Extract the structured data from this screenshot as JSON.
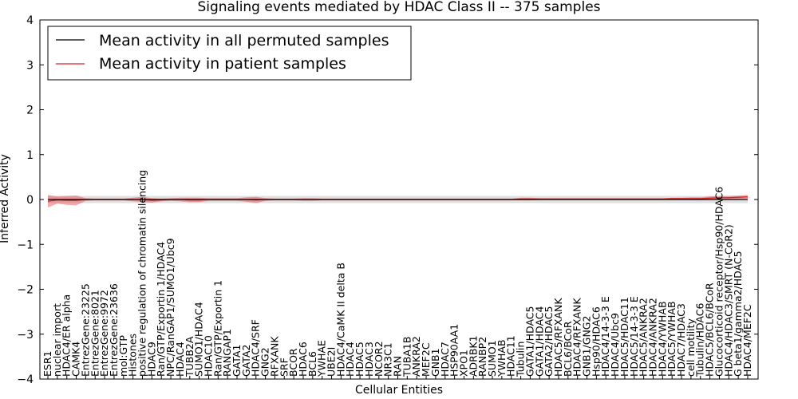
{
  "chart_data": {
    "type": "line",
    "title": "Signaling events mediated by HDAC Class II -- 375 samples",
    "xlabel": "Cellular Entities",
    "ylabel": "Inferred Activity",
    "ylim": [
      -4,
      4
    ],
    "yticks": [
      4,
      3,
      2,
      1,
      0,
      -1,
      -2,
      -3,
      -4
    ],
    "ytick_labels": [
      "4",
      "3",
      "2",
      "1",
      "0",
      "−1",
      "−2",
      "−3",
      "−4"
    ],
    "legend": {
      "location": "top-left",
      "entries": [
        {
          "label": "Mean activity in all permuted samples",
          "color": "#000000"
        },
        {
          "label": "Mean activity in patient samples",
          "color": "#d62728"
        }
      ]
    },
    "categories": [
      "ESR1",
      "nuclear import",
      "HDAC4/ER alpha",
      "CAMK4",
      "EntrezGene:23225",
      "EntrezGene:8021",
      "EntrezGene:9972",
      "EntrezGene:23636",
      "mol:GTP",
      "Histones",
      "positive regulation of chromatin silencing",
      "HDAC9",
      "Ran/GTP/Exportin 1/HDAC4",
      "NPC/RanGAP1/SUMO1/Ubc9",
      "HDAC4",
      "TUBB2A",
      "SUMO1/HDAC4",
      "HDAC10",
      "Ran/GTP/Exportin 1",
      "RANGAP1",
      "GATA1",
      "GATA2",
      "HDAC4/SRF",
      "GNG2",
      "RFXANK",
      "SRF",
      "BCOR",
      "HDAC6",
      "BCL6",
      "YWHAE",
      "UBE2I",
      "HDAC4/CaMK II delta B",
      "HDAC4",
      "HDAC5",
      "HDAC3",
      "NCOR2",
      "NR3C1",
      "RAN",
      "TUBA1B",
      "ANKRA2",
      "MEF2C",
      "GNB1",
      "HDAC7",
      "HSP90AA1",
      "XPO1",
      "ADRBK1",
      "RANBP2",
      "SUMO1",
      "YWHAB",
      "HDAC11",
      "Tubulin",
      "GATA1/HDAC5",
      "GATA1/HDAC4",
      "GATA2/HDAC5",
      "HDAC5/RFXANK",
      "BCL6/BCoR",
      "HDAC4/RFXANK",
      "GNB1/GNG2",
      "Hsp90/HDAC6",
      "HDAC4/14-3-3 E",
      "HDAC4/Ubc9",
      "HDAC5/HDAC11",
      "HDAC5/14-3-3 E",
      "HDAC5/ANKRA2",
      "HDAC4/ANKRA2",
      "HDAC4/YWHAB",
      "HDAC5/YWHAB",
      "HDAC7/HDAC3",
      "cell motility",
      "Tubulin/HDAC6",
      "HDAC5/BCL6/BCoR",
      "Glucocorticoid receptor/Hsp90/HDAC6",
      "HDAC4/HDAC3/SMRT (N-CoR2)",
      "G beta1/gamma2/HDAC5",
      "HDAC4/MEF2C"
    ],
    "series": [
      {
        "name": "Mean activity in all permuted samples",
        "color": "#000000",
        "values": [
          0,
          0,
          0,
          0,
          0,
          0,
          0,
          0,
          0,
          0,
          0,
          0,
          0,
          0,
          0,
          0,
          0,
          0,
          0,
          0,
          0,
          0,
          0,
          0,
          0,
          0,
          0,
          0,
          0,
          0,
          0,
          0,
          0,
          0,
          0,
          0,
          0,
          0,
          0,
          0,
          0,
          0,
          0,
          0,
          0,
          0,
          0,
          0,
          0,
          0,
          0,
          0,
          0,
          0,
          0,
          0,
          0,
          0,
          0,
          0,
          0,
          0,
          0,
          0,
          0,
          0,
          0,
          0,
          0,
          0,
          0,
          0,
          0,
          0,
          0
        ],
        "band": [
          0.08,
          0.08,
          0.08,
          0.08,
          0.08,
          0.08,
          0.08,
          0.08,
          0.08,
          0.08,
          0.08,
          0.08,
          0.08,
          0.08,
          0.08,
          0.08,
          0.08,
          0.08,
          0.08,
          0.08,
          0.08,
          0.08,
          0.08,
          0.08,
          0.08,
          0.08,
          0.08,
          0.08,
          0.08,
          0.08,
          0.08,
          0.08,
          0.08,
          0.08,
          0.08,
          0.08,
          0.08,
          0.08,
          0.08,
          0.08,
          0.08,
          0.08,
          0.08,
          0.08,
          0.08,
          0.08,
          0.08,
          0.08,
          0.08,
          0.08,
          0.08,
          0.08,
          0.08,
          0.08,
          0.08,
          0.08,
          0.08,
          0.08,
          0.08,
          0.08,
          0.08,
          0.08,
          0.08,
          0.08,
          0.08,
          0.08,
          0.08,
          0.08,
          0.08,
          0.08,
          0.08,
          0.08,
          0.08,
          0.08,
          0.08
        ]
      },
      {
        "name": "Mean activity in patient samples",
        "color": "#d62728",
        "values": [
          -0.04,
          -0.01,
          -0.02,
          -0.02,
          0.0,
          0.0,
          0.0,
          0.0,
          0.0,
          0.0,
          0.0,
          -0.02,
          -0.01,
          0.0,
          0.0,
          -0.01,
          -0.01,
          0.0,
          0.0,
          0.0,
          0.0,
          0.0,
          -0.01,
          0.0,
          0.0,
          0.0,
          0.0,
          0.0,
          0.0,
          0.0,
          0.0,
          0.0,
          0.0,
          0.0,
          0.0,
          0.0,
          0.0,
          0.0,
          0.0,
          0.0,
          0.0,
          0.0,
          0.0,
          0.0,
          0.0,
          0.0,
          0.0,
          0.0,
          0.0,
          0.0,
          0.01,
          0.01,
          0.01,
          0.01,
          0.01,
          0.01,
          0.01,
          0.01,
          0.01,
          0.01,
          0.01,
          0.01,
          0.01,
          0.01,
          0.01,
          0.01,
          0.02,
          0.02,
          0.02,
          0.02,
          0.03,
          0.04,
          0.04,
          0.05,
          0.06
        ],
        "band": [
          0.14,
          0.08,
          0.1,
          0.11,
          0.03,
          0.02,
          0.02,
          0.02,
          0.02,
          0.04,
          0.06,
          0.05,
          0.03,
          0.03,
          0.04,
          0.05,
          0.05,
          0.03,
          0.03,
          0.03,
          0.03,
          0.05,
          0.07,
          0.03,
          0.02,
          0.02,
          0.02,
          0.03,
          0.03,
          0.02,
          0.02,
          0.02,
          0.02,
          0.02,
          0.02,
          0.02,
          0.02,
          0.02,
          0.02,
          0.02,
          0.02,
          0.02,
          0.02,
          0.02,
          0.02,
          0.02,
          0.02,
          0.02,
          0.02,
          0.02,
          0.03,
          0.03,
          0.02,
          0.02,
          0.02,
          0.02,
          0.02,
          0.02,
          0.02,
          0.02,
          0.02,
          0.02,
          0.02,
          0.02,
          0.02,
          0.02,
          0.02,
          0.02,
          0.03,
          0.03,
          0.04,
          0.04,
          0.04,
          0.04,
          0.04
        ]
      }
    ]
  }
}
